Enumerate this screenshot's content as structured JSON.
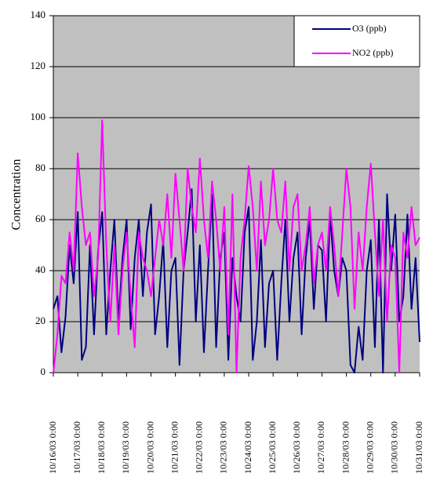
{
  "chart_data": {
    "type": "line",
    "ylabel": "Concentration",
    "x": [
      "10/16/03 0:00",
      "10/16/03 4:00",
      "10/16/03 8:00",
      "10/16/03 12:00",
      "10/16/03 16:00",
      "10/16/03 20:00",
      "10/17/03 0:00",
      "10/17/03 4:00",
      "10/17/03 8:00",
      "10/17/03 12:00",
      "10/17/03 16:00",
      "10/17/03 20:00",
      "10/18/03 0:00",
      "10/18/03 4:00",
      "10/18/03 8:00",
      "10/18/03 12:00",
      "10/18/03 16:00",
      "10/18/03 20:00",
      "10/19/03 0:00",
      "10/19/03 4:00",
      "10/19/03 8:00",
      "10/19/03 12:00",
      "10/19/03 16:00",
      "10/19/03 20:00",
      "10/20/03 0:00",
      "10/20/03 4:00",
      "10/20/03 8:00",
      "10/20/03 12:00",
      "10/20/03 16:00",
      "10/20/03 20:00",
      "10/21/03 0:00",
      "10/21/03 4:00",
      "10/21/03 8:00",
      "10/21/03 12:00",
      "10/21/03 16:00",
      "10/21/03 20:00",
      "10/22/03 0:00",
      "10/22/03 4:00",
      "10/22/03 8:00",
      "10/22/03 12:00",
      "10/22/03 16:00",
      "10/22/03 20:00",
      "10/23/03 0:00",
      "10/23/03 4:00",
      "10/23/03 8:00",
      "10/23/03 12:00",
      "10/23/03 16:00",
      "10/23/03 20:00",
      "10/24/03 0:00",
      "10/24/03 4:00",
      "10/24/03 8:00",
      "10/24/03 12:00",
      "10/24/03 16:00",
      "10/24/03 20:00",
      "10/25/03 0:00",
      "10/25/03 4:00",
      "10/25/03 8:00",
      "10/25/03 12:00",
      "10/25/03 16:00",
      "10/25/03 20:00",
      "10/26/03 0:00",
      "10/26/03 4:00",
      "10/26/03 8:00",
      "10/26/03 12:00",
      "10/26/03 16:00",
      "10/26/03 20:00",
      "10/27/03 0:00",
      "10/27/03 4:00",
      "10/27/03 8:00",
      "10/27/03 12:00",
      "10/27/03 16:00",
      "10/27/03 20:00",
      "10/28/03 0:00",
      "10/28/03 4:00",
      "10/28/03 8:00",
      "10/28/03 12:00",
      "10/28/03 16:00",
      "10/28/03 20:00",
      "10/29/03 0:00",
      "10/29/03 4:00",
      "10/29/03 8:00",
      "10/29/03 12:00",
      "10/29/03 16:00",
      "10/29/03 20:00",
      "10/30/03 0:00",
      "10/30/03 4:00",
      "10/30/03 8:00",
      "10/30/03 12:00",
      "10/30/03 16:00",
      "10/30/03 20:00",
      "10/31/03 0:00"
    ],
    "series": [
      {
        "name": "O3 (ppb)",
        "color": "#000080",
        "values": [
          25,
          30,
          8,
          22,
          50,
          35,
          63,
          5,
          10,
          50,
          15,
          48,
          63,
          15,
          40,
          60,
          20,
          45,
          60,
          17,
          45,
          60,
          30,
          55,
          66,
          15,
          30,
          52,
          10,
          40,
          45,
          3,
          40,
          55,
          72,
          20,
          50,
          8,
          40,
          70,
          10,
          45,
          55,
          5,
          45,
          30,
          20,
          55,
          65,
          5,
          20,
          52,
          10,
          35,
          40,
          5,
          35,
          60,
          20,
          45,
          55,
          15,
          45,
          60,
          25,
          50,
          48,
          20,
          62,
          40,
          30,
          45,
          40,
          3,
          0,
          18,
          5,
          40,
          52,
          10,
          60,
          0,
          70,
          40,
          62,
          20,
          30,
          62,
          25,
          45,
          12
        ]
      },
      {
        "name": "NO2 (ppb)",
        "color": "#ff00ff",
        "values": [
          0,
          15,
          38,
          35,
          55,
          40,
          86,
          65,
          50,
          55,
          30,
          45,
          99,
          50,
          20,
          50,
          15,
          40,
          55,
          30,
          10,
          55,
          45,
          40,
          30,
          45,
          60,
          50,
          70,
          45,
          78,
          60,
          40,
          80,
          65,
          55,
          84,
          60,
          45,
          75,
          60,
          40,
          65,
          15,
          70,
          0,
          45,
          60,
          81,
          65,
          40,
          75,
          50,
          60,
          80,
          60,
          55,
          75,
          40,
          65,
          70,
          40,
          50,
          65,
          35,
          50,
          55,
          40,
          65,
          50,
          30,
          55,
          80,
          65,
          25,
          55,
          40,
          65,
          82,
          55,
          30,
          60,
          20,
          50,
          45,
          0,
          55,
          45,
          65,
          50,
          53
        ]
      }
    ],
    "xlim": [
      "10/16/03 0:00",
      "10/31/03 0:00"
    ],
    "xticks": [
      "10/16/03 0:00",
      "10/17/03 0:00",
      "10/18/03 0:00",
      "10/19/03 0:00",
      "10/20/03 0:00",
      "10/21/03 0:00",
      "10/22/03 0:00",
      "10/23/03 0:00",
      "10/24/03 0:00",
      "10/25/03 0:00",
      "10/26/03 0:00",
      "10/27/03 0:00",
      "10/28/03 0:00",
      "10/29/03 0:00",
      "10/30/03 0:00",
      "10/31/03 0:00"
    ],
    "ylim": [
      0,
      140
    ],
    "yticks": [
      0,
      20,
      40,
      60,
      80,
      100,
      120,
      140
    ],
    "grid": true,
    "legend": "top-right"
  }
}
